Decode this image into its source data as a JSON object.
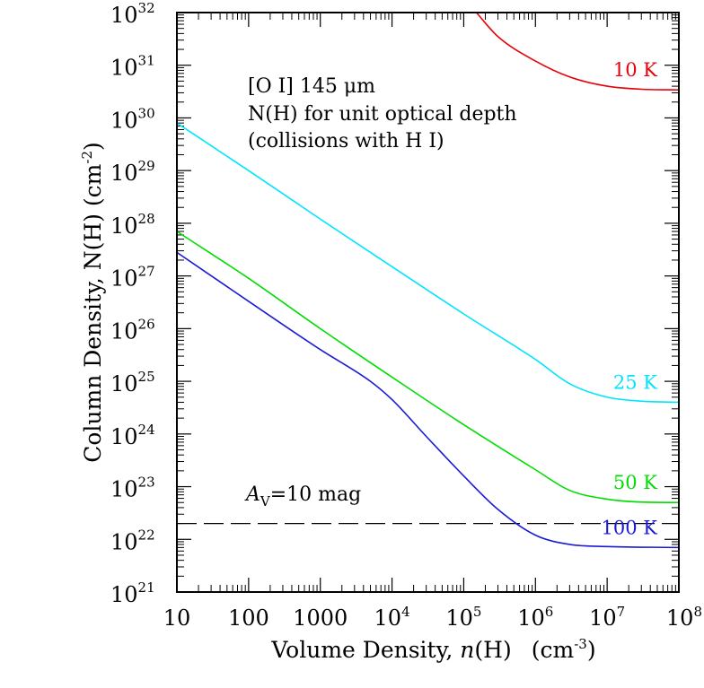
{
  "chart_data": {
    "type": "line",
    "xlabel": {
      "main": "Volume Density, ",
      "var": "n",
      "paren": "(H)",
      "units": "(cm",
      "units_exp": "-3",
      "units_close": ")"
    },
    "ylabel": {
      "main": "Column Density, N(H) (cm",
      "exp": "-2",
      "close": ")"
    },
    "x_scale": "log",
    "y_scale": "log",
    "xlim": [
      10,
      100000000
    ],
    "ylim": [
      1e+21,
      1e+32
    ],
    "x_ticks": [
      {
        "value": 10,
        "label": "10",
        "exp": ""
      },
      {
        "value": 100,
        "label": "100",
        "exp": ""
      },
      {
        "value": 1000,
        "label": "1000",
        "exp": ""
      },
      {
        "value": 10000,
        "label": "10",
        "exp": "4"
      },
      {
        "value": 100000,
        "label": "10",
        "exp": "5"
      },
      {
        "value": 1000000,
        "label": "10",
        "exp": "6"
      },
      {
        "value": 10000000,
        "label": "10",
        "exp": "7"
      },
      {
        "value": 100000000,
        "label": "10",
        "exp": "8"
      }
    ],
    "y_ticks": [
      {
        "value": 1e+21,
        "label": "10",
        "exp": "21"
      },
      {
        "value": 1e+22,
        "label": "10",
        "exp": "22"
      },
      {
        "value": 1e+23,
        "label": "10",
        "exp": "23"
      },
      {
        "value": 1e+24,
        "label": "10",
        "exp": "24"
      },
      {
        "value": 1e+25,
        "label": "10",
        "exp": "25"
      },
      {
        "value": 1e+26,
        "label": "10",
        "exp": "26"
      },
      {
        "value": 1e+27,
        "label": "10",
        "exp": "27"
      },
      {
        "value": 1e+28,
        "label": "10",
        "exp": "28"
      },
      {
        "value": 1e+29,
        "label": "10",
        "exp": "29"
      },
      {
        "value": 1e+30,
        "label": "10",
        "exp": "30"
      },
      {
        "value": 1e+31,
        "label": "10",
        "exp": "31"
      },
      {
        "value": 1e+32,
        "label": "10",
        "exp": "32"
      }
    ],
    "annotations": [
      {
        "text": "[O I] 145 μm"
      },
      {
        "text": "N(H) for unit optical depth"
      },
      {
        "text": "(collisions with H I)"
      }
    ],
    "reference_line": {
      "label_var": "A",
      "label_sub": "V",
      "label_rest": "=10 mag",
      "y": 2e+22,
      "style": "dashed",
      "color": "#000000"
    },
    "series": [
      {
        "name": "10 K",
        "color": "#e8000b",
        "points": [
          [
            150000,
            1e+32
          ],
          [
            300000,
            3.5e+31
          ],
          [
            1000000,
            1.2e+31
          ],
          [
            3000000,
            6e+30
          ],
          [
            10000000,
            4e+30
          ],
          [
            30000000,
            3.5e+30
          ],
          [
            100000000,
            3.4e+30
          ]
        ]
      },
      {
        "name": "25 K",
        "color": "#00e5ff",
        "points": [
          [
            10,
            8e+29
          ],
          [
            100,
            1e+29
          ],
          [
            1000,
            1.2e+28
          ],
          [
            10000,
            1.5e+27
          ],
          [
            100000,
            1.9e+26
          ],
          [
            1000000,
            2.6e+25
          ],
          [
            3000000,
            9e+24
          ],
          [
            10000000,
            5e+24
          ],
          [
            30000000,
            4.2e+24
          ],
          [
            100000000,
            4e+24
          ]
        ]
      },
      {
        "name": "50 K",
        "color": "#00dd00",
        "points": [
          [
            10,
            7e+27
          ],
          [
            100,
            9e+26
          ],
          [
            1000,
            1e+26
          ],
          [
            10000,
            1.2e+25
          ],
          [
            100000,
            1.5e+24
          ],
          [
            1000000,
            2.1e+23
          ],
          [
            3000000,
            8.5e+22
          ],
          [
            10000000,
            5.8e+22
          ],
          [
            30000000,
            5.1e+22
          ],
          [
            100000000,
            5e+22
          ]
        ]
      },
      {
        "name": "100 K",
        "color": "#1a1ad6",
        "points": [
          [
            10,
            2.8e+27
          ],
          [
            100,
            3.3e+26
          ],
          [
            1000,
            4e+25
          ],
          [
            5000,
            1e+25
          ],
          [
            10000,
            4.5e+24
          ],
          [
            30000,
            9e+23
          ],
          [
            100000,
            1.6e+23
          ],
          [
            300000,
            3.7e+22
          ],
          [
            1000000,
            1.2e+22
          ],
          [
            3000000,
            8e+21
          ],
          [
            10000000,
            7.3e+21
          ],
          [
            100000000,
            7e+21
          ]
        ]
      }
    ]
  }
}
